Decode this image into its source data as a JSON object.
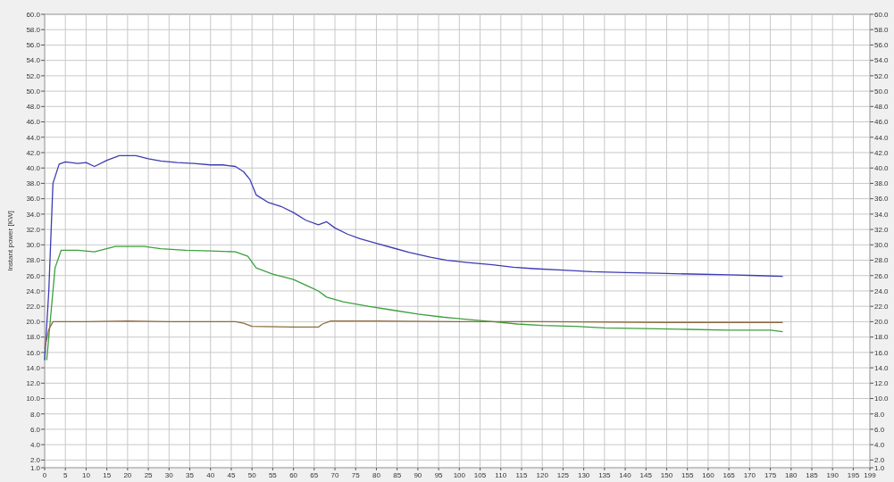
{
  "chart_data": {
    "type": "line",
    "ylabel": "Instant power [KW]",
    "grid": true,
    "marker": "none",
    "line_style": "solid",
    "xlim": [
      0,
      199
    ],
    "xticks": [
      0,
      5,
      10,
      15,
      20,
      25,
      30,
      35,
      40,
      45,
      50,
      55,
      60,
      65,
      70,
      75,
      80,
      85,
      90,
      95,
      100,
      105,
      110,
      115,
      120,
      125,
      130,
      135,
      140,
      145,
      150,
      155,
      160,
      165,
      170,
      175,
      180,
      185,
      190,
      195,
      199
    ],
    "ylim": [
      1,
      60
    ],
    "yticks": [
      {
        "value": 1,
        "label": "1.0"
      },
      {
        "value": 2,
        "label": "2.0"
      },
      {
        "value": 4,
        "label": "4.0"
      },
      {
        "value": 6,
        "label": "6.0"
      },
      {
        "value": 8,
        "label": "8.0"
      },
      {
        "value": 10,
        "label": "10.0"
      },
      {
        "value": 12,
        "label": "12.0"
      },
      {
        "value": 14,
        "label": "14.0"
      },
      {
        "value": 16,
        "label": "16.0"
      },
      {
        "value": 18,
        "label": "18.0"
      },
      {
        "value": 20,
        "label": "20.0"
      },
      {
        "value": 22,
        "label": "22.0"
      },
      {
        "value": 24,
        "label": "24.0"
      },
      {
        "value": 26,
        "label": "26.0"
      },
      {
        "value": 28,
        "label": "28.0"
      },
      {
        "value": 30,
        "label": "30.0"
      },
      {
        "value": 32,
        "label": "32.0"
      },
      {
        "value": 34,
        "label": "34.0"
      },
      {
        "value": 36,
        "label": "36.0"
      },
      {
        "value": 38,
        "label": "38.0"
      },
      {
        "value": 40,
        "label": "40.0"
      },
      {
        "value": 42,
        "label": "42.0"
      },
      {
        "value": 44,
        "label": "44.0"
      },
      {
        "value": 46,
        "label": "46.0"
      },
      {
        "value": 48,
        "label": "48.0"
      },
      {
        "value": 50,
        "label": "50.0"
      },
      {
        "value": 52,
        "label": "52.0"
      },
      {
        "value": 54,
        "label": "54.0"
      },
      {
        "value": 56,
        "label": "56.0"
      },
      {
        "value": 58,
        "label": "58.0"
      },
      {
        "value": 60,
        "label": "60.0"
      }
    ],
    "y2lim": [
      1,
      60
    ],
    "y2ticks": [
      {
        "value": 1,
        "label": "1.0"
      },
      {
        "value": 2,
        "label": "2.0"
      },
      {
        "value": 4,
        "label": "4.0"
      },
      {
        "value": 6,
        "label": "6.0"
      },
      {
        "value": 8,
        "label": "8.0"
      },
      {
        "value": 10,
        "label": "10.0"
      },
      {
        "value": 12,
        "label": "12.0"
      },
      {
        "value": 14,
        "label": "14.0"
      },
      {
        "value": 16,
        "label": "16.0"
      },
      {
        "value": 18,
        "label": "18.0"
      },
      {
        "value": 20,
        "label": "20.0"
      },
      {
        "value": 22,
        "label": "22.0"
      },
      {
        "value": 24,
        "label": "24.0"
      },
      {
        "value": 26,
        "label": "26.0"
      },
      {
        "value": 28,
        "label": "28.0"
      },
      {
        "value": 30,
        "label": "30.0"
      },
      {
        "value": 32,
        "label": "32.0"
      },
      {
        "value": 34,
        "label": "34.0"
      },
      {
        "value": 36,
        "label": "36.0"
      },
      {
        "value": 38,
        "label": "38.0"
      },
      {
        "value": 40,
        "label": "40.0"
      },
      {
        "value": 42,
        "label": "42.0"
      },
      {
        "value": 44,
        "label": "44.0"
      },
      {
        "value": 46,
        "label": "46.0"
      },
      {
        "value": 48,
        "label": "48.0"
      },
      {
        "value": 50,
        "label": "50.0"
      },
      {
        "value": 52,
        "label": "52.0"
      },
      {
        "value": 54,
        "label": "54.0"
      },
      {
        "value": 56,
        "label": "56.0"
      },
      {
        "value": 58,
        "label": "58.0"
      },
      {
        "value": 60,
        "label": "60.0"
      }
    ],
    "series": [
      {
        "color": "#3c3cb4",
        "x": [
          0,
          1,
          2,
          3.5,
          5,
          8,
          10,
          12,
          15,
          18,
          22,
          25,
          28,
          32,
          36,
          40,
          43,
          46,
          48,
          49.5,
          51,
          54,
          57,
          60,
          63,
          66,
          68,
          70,
          73,
          76,
          80,
          84,
          88,
          93,
          97,
          102,
          108,
          113,
          118,
          125,
          132,
          140,
          148,
          156,
          165,
          172,
          178
        ],
        "values": [
          15,
          24,
          38,
          40.5,
          40.8,
          40.6,
          40.7,
          40.2,
          41,
          41.6,
          41.6,
          41.2,
          40.9,
          40.7,
          40.6,
          40.4,
          40.4,
          40.2,
          39.5,
          38.5,
          36.5,
          35.5,
          35,
          34.2,
          33.2,
          32.6,
          33,
          32.2,
          31.4,
          30.8,
          30.2,
          29.6,
          29,
          28.4,
          28,
          27.7,
          27.4,
          27.1,
          26.9,
          26.7,
          26.5,
          26.4,
          26.3,
          26.2,
          26.1,
          26,
          25.9
        ]
      },
      {
        "color": "#3ca03c",
        "x": [
          0.5,
          1.5,
          2.5,
          4,
          8,
          12,
          17,
          24,
          28,
          34,
          40,
          46,
          49,
          51,
          55,
          60,
          64,
          66,
          68,
          72,
          78,
          84,
          90,
          96,
          102,
          108,
          114,
          120,
          128,
          135,
          145,
          155,
          165,
          175,
          178
        ],
        "values": [
          15,
          21,
          27,
          29.3,
          29.3,
          29.1,
          29.8,
          29.8,
          29.5,
          29.3,
          29.2,
          29.1,
          28.5,
          27,
          26.2,
          25.5,
          24.5,
          24,
          23.2,
          22.6,
          22,
          21.5,
          21,
          20.6,
          20.3,
          20,
          19.7,
          19.5,
          19.4,
          19.2,
          19.1,
          19,
          18.9,
          18.9,
          18.7
        ]
      },
      {
        "color": "#8b6d3f",
        "x": [
          0,
          1,
          2,
          10,
          20,
          30,
          46,
          48,
          50,
          60,
          66,
          67,
          69,
          80,
          100,
          120,
          150,
          178
        ],
        "values": [
          16.5,
          19,
          20,
          20,
          20.1,
          20,
          20,
          19.8,
          19.4,
          19.3,
          19.3,
          19.7,
          20.1,
          20.1,
          20,
          20,
          19.9,
          19.9
        ]
      }
    ]
  }
}
